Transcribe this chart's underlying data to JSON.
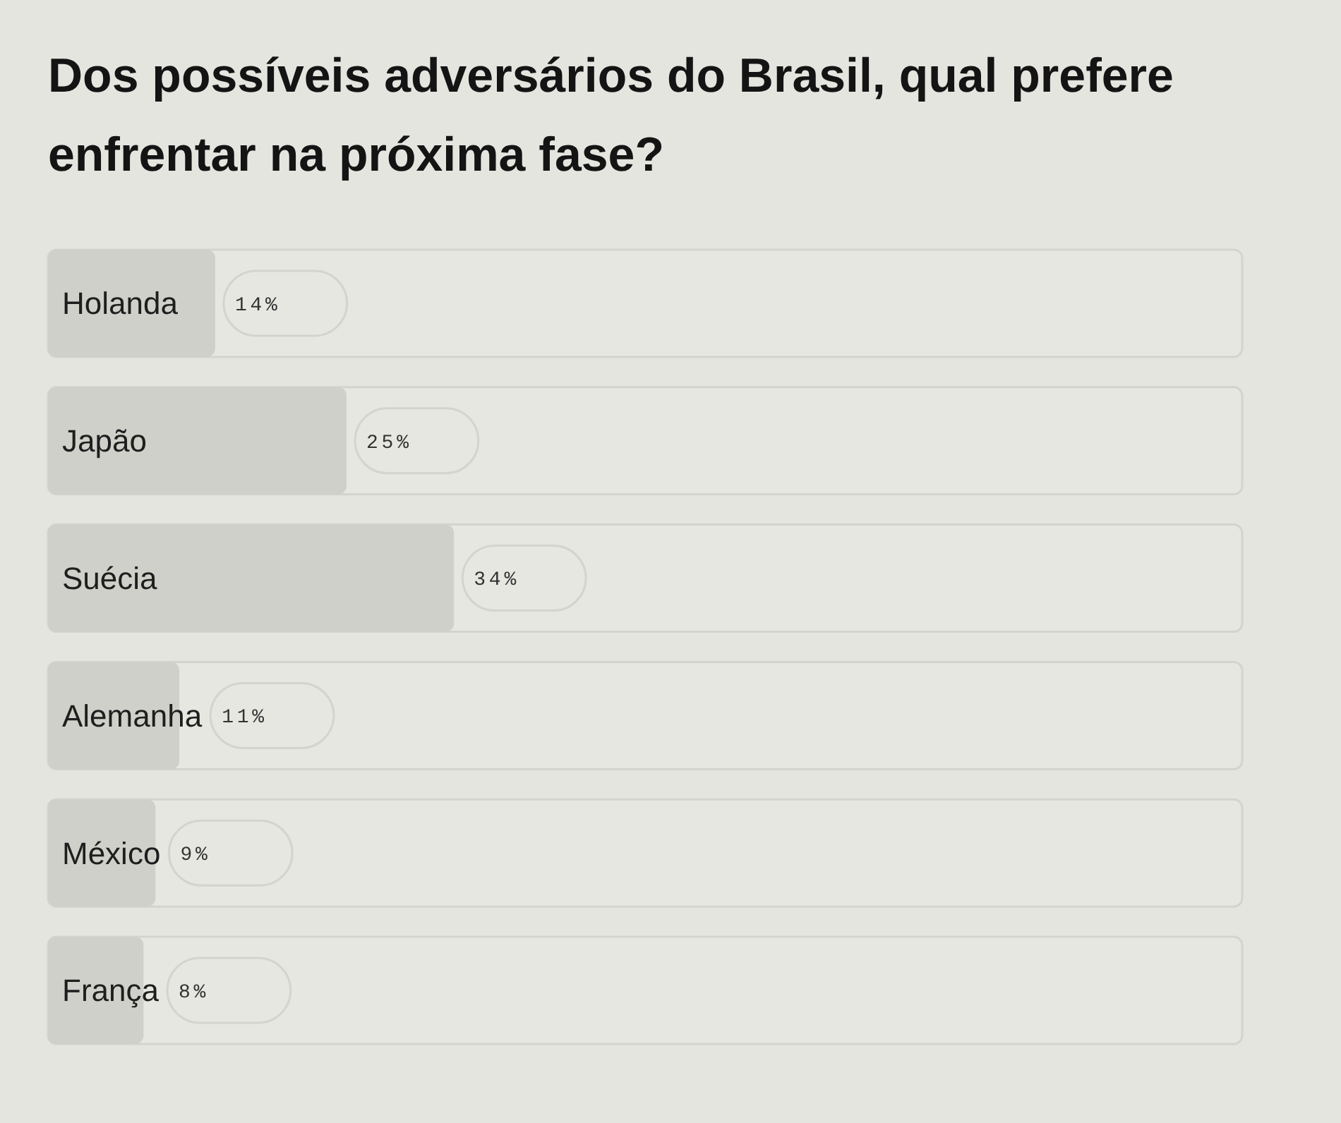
{
  "chart_data": {
    "type": "bar",
    "orientation": "horizontal",
    "title": "Dos possíveis adversários do Brasil, qual prefere enfrentar na próxima fase?",
    "categories": [
      "Holanda",
      "Japão",
      "Suécia",
      "Alemanha",
      "México",
      "França"
    ],
    "values": [
      14,
      25,
      34,
      11,
      9,
      8
    ],
    "value_labels": [
      "14%",
      "25%",
      "34%",
      "11%",
      "9%",
      "8%"
    ],
    "color": "#d0d0cb",
    "xlim": [
      0,
      100
    ],
    "tick_labels": "y"
  }
}
